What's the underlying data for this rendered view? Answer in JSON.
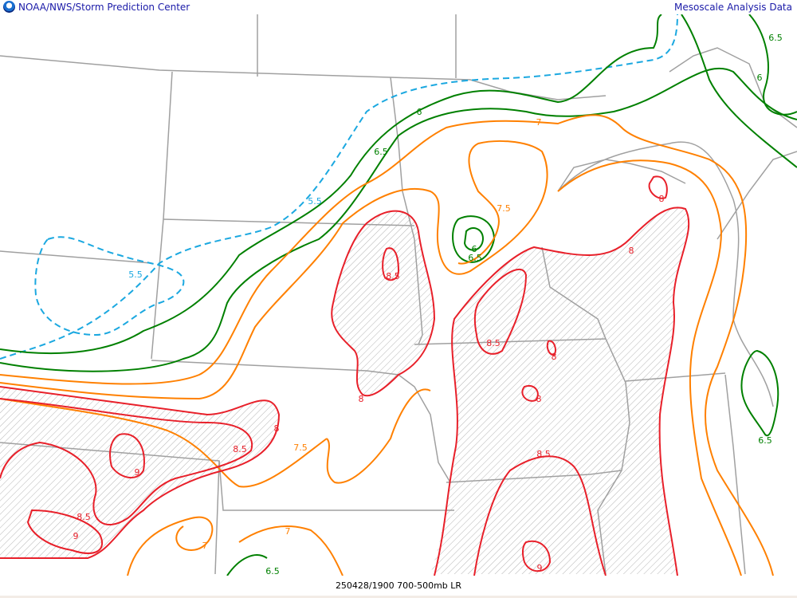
{
  "header": {
    "agency": "NOAA/NWS/Storm Prediction Center",
    "product_group": "Mesoscale Analysis Data",
    "logo_icon": "noaa-logo-icon"
  },
  "footer": {
    "caption": "250428/1900 700-500mb LR"
  },
  "colors": {
    "contour_5_5": "#1ba8e0",
    "contour_6": "#008000",
    "contour_7": "#ff8000",
    "contour_8": "#e8202a",
    "borders": "#a0a0a0",
    "hatch": "#b0b0b0"
  },
  "contour_labels": [
    "6.5",
    "6",
    "6",
    "7",
    "6.5",
    "5.5",
    "7.5",
    "6",
    "6.5",
    "8",
    "8",
    "8.5",
    "5.5",
    "8.5",
    "8",
    "8",
    "8",
    "8",
    "8.5",
    "7.5",
    "9",
    "8.5",
    "6.5",
    "8.5",
    "9",
    "7",
    "7",
    "6.5",
    "9"
  ]
}
